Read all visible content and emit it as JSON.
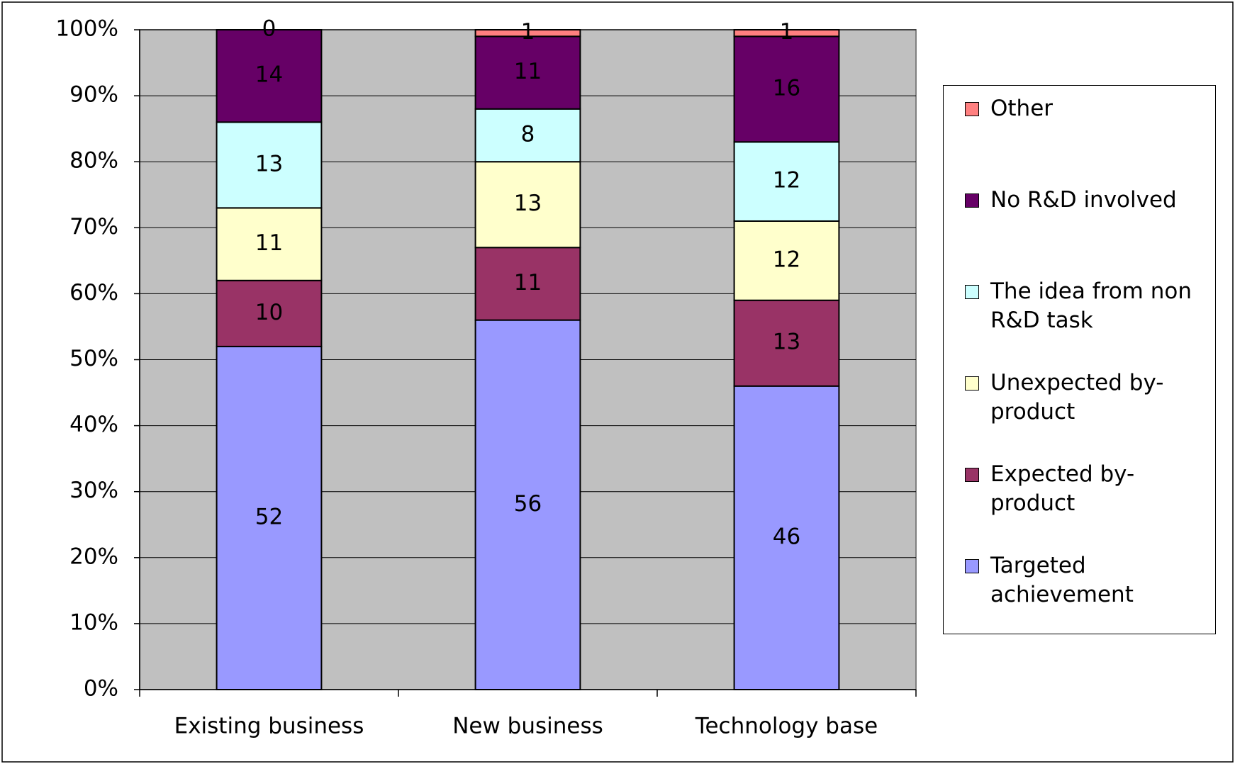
{
  "chart_data": {
    "type": "stacked_bar",
    "categories": [
      "Existing business",
      "New business",
      "Technology base"
    ],
    "series": [
      {
        "name": "Targeted achievement",
        "color": "#9999ff",
        "values": [
          52,
          56,
          46
        ]
      },
      {
        "name": "Expected by-product",
        "color": "#993366",
        "values": [
          10,
          11,
          13
        ]
      },
      {
        "name": "Unexpected by-product",
        "color": "#ffffcc",
        "values": [
          11,
          13,
          12
        ]
      },
      {
        "name": "The idea from non R&D task",
        "color": "#ccffff",
        "values": [
          13,
          8,
          12
        ]
      },
      {
        "name": "No R&D involved",
        "color": "#660066",
        "values": [
          14,
          11,
          16
        ]
      },
      {
        "name": "Other",
        "color": "#ff8080",
        "values": [
          0,
          1,
          1
        ]
      }
    ],
    "ylim": [
      0,
      100
    ],
    "yticks": [
      {
        "value": 0,
        "label": "0%"
      },
      {
        "value": 10,
        "label": "10%"
      },
      {
        "value": 20,
        "label": "20%"
      },
      {
        "value": 30,
        "label": "30%"
      },
      {
        "value": 40,
        "label": "40%"
      },
      {
        "value": 50,
        "label": "50%"
      },
      {
        "value": 60,
        "label": "60%"
      },
      {
        "value": 70,
        "label": "70%"
      },
      {
        "value": 80,
        "label": "80%"
      },
      {
        "value": 90,
        "label": "90%"
      },
      {
        "value": 100,
        "label": "100%"
      }
    ],
    "grid": true,
    "plot_background": "#c0c0c0",
    "legend": "right"
  }
}
